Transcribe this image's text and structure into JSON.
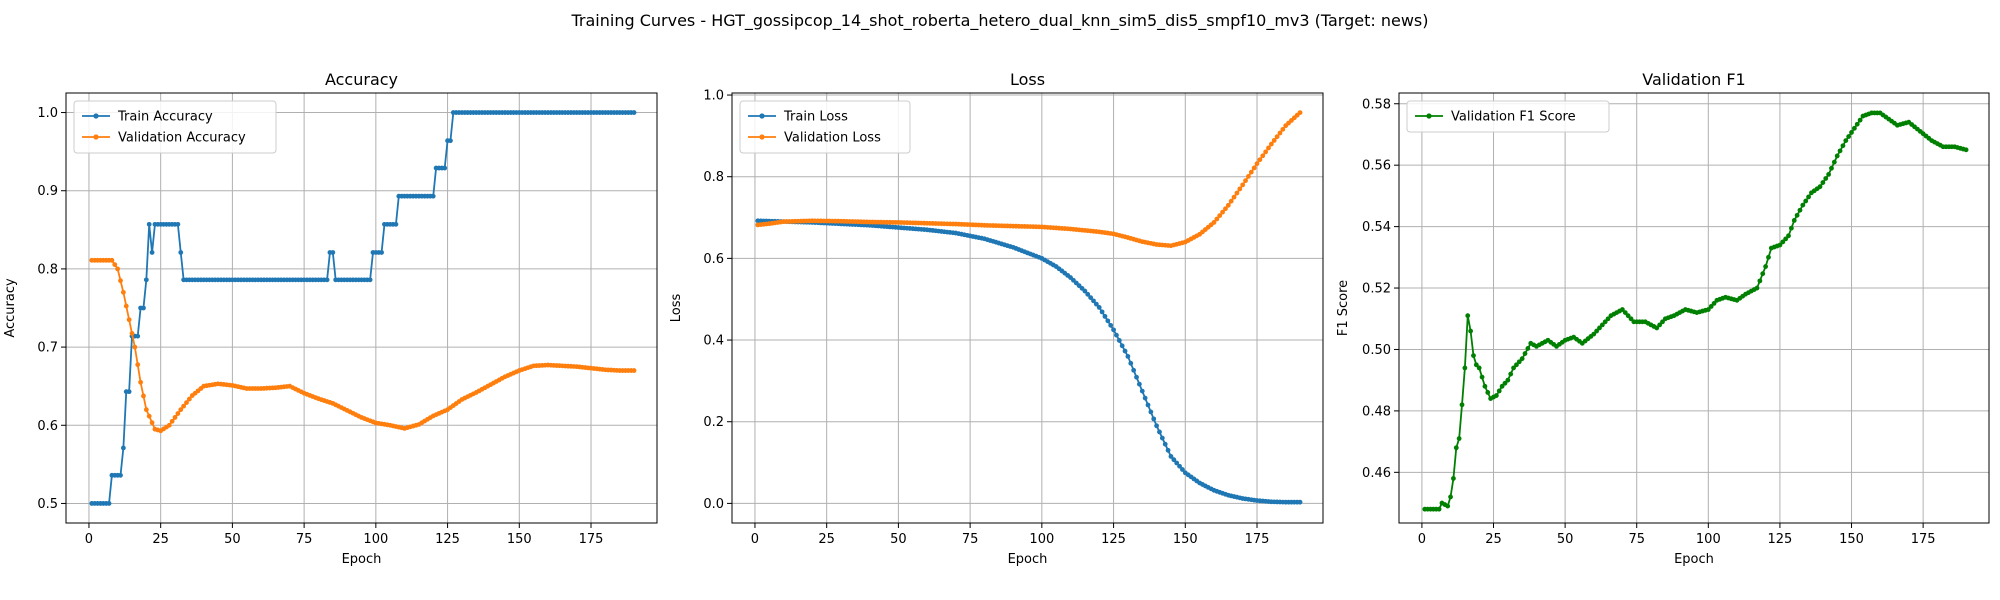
{
  "figure": {
    "title": "Training Curves - HGT_gossipcop_14_shot_roberta_hetero_dual_knn_sim5_dis5_smpf10_mv3 (Target: news)"
  },
  "chart_data": [
    {
      "type": "line",
      "title": "Accuracy",
      "xlabel": "Epoch",
      "ylabel": "Accuracy",
      "xlim": [
        -8,
        198
      ],
      "ylim": [
        0.475,
        1.025
      ],
      "xticks": [
        0,
        25,
        50,
        75,
        100,
        125,
        150,
        175
      ],
      "yticks": [
        0.5,
        0.6,
        0.7,
        0.8,
        0.9,
        1.0
      ],
      "ytick_decimals": 1,
      "grid": true,
      "legend_position": "top-left",
      "series": [
        {
          "name": "Train Accuracy",
          "color": "#1f77b4",
          "x_start": 1,
          "steps": [
            [
              1,
              0.5
            ],
            [
              8,
              0.536
            ],
            [
              12,
              0.571
            ],
            [
              13,
              0.643
            ],
            [
              15,
              0.714
            ],
            [
              18,
              0.75
            ],
            [
              20,
              0.786
            ],
            [
              21,
              0.857
            ],
            [
              22,
              0.821
            ],
            [
              23,
              0.857
            ],
            [
              32,
              0.821
            ],
            [
              33,
              0.786
            ],
            [
              84,
              0.821
            ],
            [
              86,
              0.786
            ],
            [
              99,
              0.821
            ],
            [
              103,
              0.857
            ],
            [
              108,
              0.893
            ],
            [
              121,
              0.929
            ],
            [
              125,
              0.964
            ],
            [
              127,
              1.0
            ],
            [
              190,
              1.0
            ]
          ]
        },
        {
          "name": "Validation Accuracy",
          "color": "#ff7f0e",
          "x_start": 1,
          "points": [
            [
              1,
              0.811
            ],
            [
              8,
              0.811
            ],
            [
              10,
              0.8
            ],
            [
              12,
              0.77
            ],
            [
              14,
              0.735
            ],
            [
              16,
              0.7
            ],
            [
              18,
              0.655
            ],
            [
              20,
              0.62
            ],
            [
              23,
              0.595
            ],
            [
              25,
              0.593
            ],
            [
              28,
              0.6
            ],
            [
              32,
              0.62
            ],
            [
              36,
              0.638
            ],
            [
              40,
              0.65
            ],
            [
              45,
              0.653
            ],
            [
              50,
              0.651
            ],
            [
              55,
              0.647
            ],
            [
              60,
              0.647
            ],
            [
              65,
              0.648
            ],
            [
              70,
              0.65
            ],
            [
              75,
              0.641
            ],
            [
              80,
              0.634
            ],
            [
              85,
              0.628
            ],
            [
              90,
              0.619
            ],
            [
              95,
              0.61
            ],
            [
              100,
              0.603
            ],
            [
              105,
              0.6
            ],
            [
              110,
              0.596
            ],
            [
              115,
              0.601
            ],
            [
              120,
              0.612
            ],
            [
              125,
              0.62
            ],
            [
              130,
              0.633
            ],
            [
              135,
              0.642
            ],
            [
              140,
              0.652
            ],
            [
              145,
              0.662
            ],
            [
              150,
              0.67
            ],
            [
              155,
              0.676
            ],
            [
              160,
              0.677
            ],
            [
              165,
              0.676
            ],
            [
              170,
              0.675
            ],
            [
              175,
              0.673
            ],
            [
              180,
              0.671
            ],
            [
              185,
              0.67
            ],
            [
              190,
              0.67
            ]
          ]
        }
      ]
    },
    {
      "type": "line",
      "title": "Loss",
      "xlabel": "Epoch",
      "ylabel": "Loss",
      "xlim": [
        -8,
        198
      ],
      "ylim": [
        -0.048,
        1.005
      ],
      "xticks": [
        0,
        25,
        50,
        75,
        100,
        125,
        150,
        175
      ],
      "yticks": [
        0.0,
        0.2,
        0.4,
        0.6,
        0.8,
        1.0
      ],
      "ytick_decimals": 1,
      "grid": true,
      "legend_position": "top-left",
      "series": [
        {
          "name": "Train Loss",
          "color": "#1f77b4",
          "x_start": 1,
          "points": [
            [
              1,
              0.692
            ],
            [
              20,
              0.688
            ],
            [
              40,
              0.681
            ],
            [
              60,
              0.67
            ],
            [
              70,
              0.662
            ],
            [
              80,
              0.648
            ],
            [
              90,
              0.627
            ],
            [
              100,
              0.6
            ],
            [
              105,
              0.58
            ],
            [
              110,
              0.553
            ],
            [
              115,
              0.52
            ],
            [
              120,
              0.48
            ],
            [
              125,
              0.425
            ],
            [
              130,
              0.36
            ],
            [
              135,
              0.275
            ],
            [
              140,
              0.19
            ],
            [
              145,
              0.115
            ],
            [
              150,
              0.075
            ],
            [
              155,
              0.05
            ],
            [
              160,
              0.032
            ],
            [
              165,
              0.02
            ],
            [
              170,
              0.012
            ],
            [
              175,
              0.007
            ],
            [
              180,
              0.004
            ],
            [
              185,
              0.003
            ],
            [
              190,
              0.003
            ]
          ]
        },
        {
          "name": "Validation Loss",
          "color": "#ff7f0e",
          "x_start": 1,
          "points": [
            [
              1,
              0.682
            ],
            [
              5,
              0.685
            ],
            [
              10,
              0.69
            ],
            [
              20,
              0.692
            ],
            [
              30,
              0.691
            ],
            [
              40,
              0.689
            ],
            [
              50,
              0.688
            ],
            [
              60,
              0.686
            ],
            [
              70,
              0.684
            ],
            [
              80,
              0.681
            ],
            [
              90,
              0.679
            ],
            [
              100,
              0.677
            ],
            [
              110,
              0.672
            ],
            [
              120,
              0.665
            ],
            [
              125,
              0.66
            ],
            [
              130,
              0.651
            ],
            [
              135,
              0.641
            ],
            [
              140,
              0.634
            ],
            [
              145,
              0.631
            ],
            [
              150,
              0.64
            ],
            [
              155,
              0.659
            ],
            [
              160,
              0.688
            ],
            [
              165,
              0.73
            ],
            [
              170,
              0.78
            ],
            [
              175,
              0.832
            ],
            [
              180,
              0.88
            ],
            [
              185,
              0.925
            ],
            [
              190,
              0.957
            ]
          ]
        }
      ]
    },
    {
      "type": "line",
      "title": "Validation F1",
      "xlabel": "Epoch",
      "ylabel": "F1 Score",
      "xlim": [
        -8,
        198
      ],
      "ylim": [
        0.4435,
        0.5835
      ],
      "xticks": [
        0,
        25,
        50,
        75,
        100,
        125,
        150,
        175
      ],
      "yticks": [
        0.46,
        0.48,
        0.5,
        0.52,
        0.54,
        0.56,
        0.58
      ],
      "ytick_decimals": 2,
      "grid": true,
      "legend_position": "top-left",
      "series": [
        {
          "name": "Validation F1 Score",
          "color": "#008000",
          "x_start": 1,
          "points": [
            [
              1,
              0.448
            ],
            [
              6,
              0.448
            ],
            [
              7,
              0.45
            ],
            [
              9,
              0.449
            ],
            [
              10,
              0.452
            ],
            [
              11,
              0.458
            ],
            [
              12,
              0.468
            ],
            [
              13,
              0.471
            ],
            [
              14,
              0.482
            ],
            [
              15,
              0.494
            ],
            [
              16,
              0.511
            ],
            [
              17,
              0.506
            ],
            [
              18,
              0.498
            ],
            [
              19,
              0.495
            ],
            [
              20,
              0.494
            ],
            [
              22,
              0.488
            ],
            [
              24,
              0.484
            ],
            [
              26,
              0.485
            ],
            [
              28,
              0.488
            ],
            [
              30,
              0.49
            ],
            [
              32,
              0.494
            ],
            [
              35,
              0.497
            ],
            [
              38,
              0.502
            ],
            [
              40,
              0.501
            ],
            [
              44,
              0.503
            ],
            [
              47,
              0.501
            ],
            [
              50,
              0.503
            ],
            [
              53,
              0.504
            ],
            [
              56,
              0.502
            ],
            [
              60,
              0.505
            ],
            [
              63,
              0.508
            ],
            [
              66,
              0.511
            ],
            [
              70,
              0.513
            ],
            [
              74,
              0.509
            ],
            [
              78,
              0.509
            ],
            [
              82,
              0.507
            ],
            [
              85,
              0.51
            ],
            [
              88,
              0.511
            ],
            [
              92,
              0.513
            ],
            [
              96,
              0.512
            ],
            [
              100,
              0.513
            ],
            [
              103,
              0.516
            ],
            [
              106,
              0.517
            ],
            [
              110,
              0.516
            ],
            [
              113,
              0.518
            ],
            [
              117,
              0.52
            ],
            [
              120,
              0.527
            ],
            [
              122,
              0.533
            ],
            [
              125,
              0.534
            ],
            [
              128,
              0.537
            ],
            [
              130,
              0.542
            ],
            [
              133,
              0.547
            ],
            [
              136,
              0.551
            ],
            [
              139,
              0.553
            ],
            [
              142,
              0.557
            ],
            [
              145,
              0.563
            ],
            [
              148,
              0.568
            ],
            [
              151,
              0.572
            ],
            [
              154,
              0.576
            ],
            [
              157,
              0.577
            ],
            [
              160,
              0.577
            ],
            [
              163,
              0.575
            ],
            [
              166,
              0.573
            ],
            [
              170,
              0.574
            ],
            [
              174,
              0.571
            ],
            [
              178,
              0.568
            ],
            [
              182,
              0.566
            ],
            [
              186,
              0.566
            ],
            [
              190,
              0.565
            ]
          ]
        }
      ]
    }
  ]
}
